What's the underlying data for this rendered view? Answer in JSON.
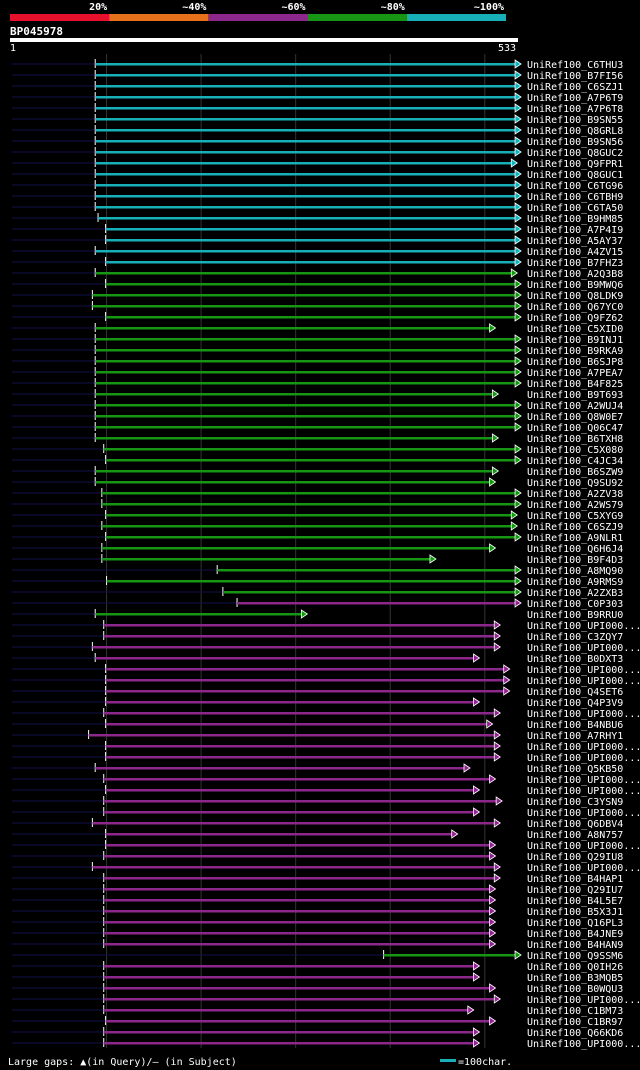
{
  "chart_data": {
    "type": "alignment-overview",
    "title": "BP045978",
    "query_start_label": "1",
    "query_end_label": "533",
    "query_length": 533,
    "legend_identity": [
      {
        "label": "20%",
        "color": "#e8112d"
      },
      {
        "label": "~40%",
        "color": "#e8721c"
      },
      {
        "label": "~60%",
        "color": "#8c278c"
      },
      {
        "label": "~80%",
        "color": "#169614"
      },
      {
        "label": "~100%",
        "color": "#17b0b8"
      }
    ],
    "footer_gap_legend": "Large gaps: ▲(in Query)/– (in Subject)",
    "footer_scale_legend": "=100char.",
    "scale_bar_chars": 100,
    "grid_at_query_positions": [
      100,
      200,
      300,
      400,
      500
    ],
    "rows": [
      {
        "name": "UniRef100_C6THU3",
        "id": "100",
        "start": 88,
        "end": 532
      },
      {
        "name": "UniRef100_B7FI56",
        "id": "100",
        "start": 88,
        "end": 532
      },
      {
        "name": "UniRef100_C6SZJ1",
        "id": "100",
        "start": 88,
        "end": 532
      },
      {
        "name": "UniRef100_A7P6T9",
        "id": "100",
        "start": 88,
        "end": 532
      },
      {
        "name": "UniRef100_A7P6T8",
        "id": "100",
        "start": 88,
        "end": 532
      },
      {
        "name": "UniRef100_B9SN55",
        "id": "100",
        "start": 88,
        "end": 532
      },
      {
        "name": "UniRef100_Q8GRL8",
        "id": "100",
        "start": 88,
        "end": 532
      },
      {
        "name": "UniRef100_B9SN56",
        "id": "100",
        "start": 88,
        "end": 532
      },
      {
        "name": "UniRef100_Q8GUC2",
        "id": "100",
        "start": 88,
        "end": 532
      },
      {
        "name": "UniRef100_Q9FPR1",
        "id": "100",
        "start": 88,
        "end": 528
      },
      {
        "name": "UniRef100_Q8GUC1",
        "id": "100",
        "start": 88,
        "end": 532
      },
      {
        "name": "UniRef100_C6TG96",
        "id": "100",
        "start": 88,
        "end": 532
      },
      {
        "name": "UniRef100_C6TBH9",
        "id": "100",
        "start": 88,
        "end": 532
      },
      {
        "name": "UniRef100_C6TA50",
        "id": "100",
        "start": 88,
        "end": 532
      },
      {
        "name": "UniRef100_B9HM85",
        "id": "100",
        "start": 91,
        "end": 532
      },
      {
        "name": "UniRef100_A7P4I9",
        "id": "100",
        "start": 99,
        "end": 532
      },
      {
        "name": "UniRef100_A5AY37",
        "id": "100",
        "start": 99,
        "end": 532
      },
      {
        "name": "UniRef100_A4ZV15",
        "id": "100",
        "start": 88,
        "end": 532
      },
      {
        "name": "UniRef100_B7FHZ3",
        "id": "100",
        "start": 99,
        "end": 532
      },
      {
        "name": "UniRef100_A2Q3B8",
        "id": "80",
        "start": 88,
        "end": 528
      },
      {
        "name": "UniRef100_B9MWQ6",
        "id": "80",
        "start": 99,
        "end": 532
      },
      {
        "name": "UniRef100_Q8LDK9",
        "id": "80",
        "start": 85,
        "end": 532
      },
      {
        "name": "UniRef100_Q67YC0",
        "id": "80",
        "start": 85,
        "end": 532
      },
      {
        "name": "UniRef100_Q9FZ62",
        "id": "80",
        "start": 99,
        "end": 532
      },
      {
        "name": "UniRef100_C5XID0",
        "id": "80",
        "start": 88,
        "end": 505
      },
      {
        "name": "UniRef100_B9INJ1",
        "id": "80",
        "start": 88,
        "end": 532
      },
      {
        "name": "UniRef100_B9RKA9",
        "id": "80",
        "start": 88,
        "end": 532
      },
      {
        "name": "UniRef100_B6SJP8",
        "id": "80",
        "start": 88,
        "end": 532
      },
      {
        "name": "UniRef100_A7PEA7",
        "id": "80",
        "start": 88,
        "end": 532
      },
      {
        "name": "UniRef100_B4F825",
        "id": "80",
        "start": 88,
        "end": 532
      },
      {
        "name": "UniRef100_B9T693",
        "id": "80",
        "start": 88,
        "end": 508
      },
      {
        "name": "UniRef100_A2WUJ4",
        "id": "80",
        "start": 88,
        "end": 532
      },
      {
        "name": "UniRef100_Q8W0E7",
        "id": "80",
        "start": 88,
        "end": 532
      },
      {
        "name": "UniRef100_Q06C47",
        "id": "80",
        "start": 88,
        "end": 532
      },
      {
        "name": "UniRef100_B6TXH8",
        "id": "80",
        "start": 88,
        "end": 508
      },
      {
        "name": "UniRef100_C5X080",
        "id": "80",
        "start": 97,
        "end": 532
      },
      {
        "name": "UniRef100_C4JC34",
        "id": "80",
        "start": 99,
        "end": 532
      },
      {
        "name": "UniRef100_B6SZW9",
        "id": "80",
        "start": 88,
        "end": 508
      },
      {
        "name": "UniRef100_Q9SU92",
        "id": "80",
        "start": 88,
        "end": 505
      },
      {
        "name": "UniRef100_A2ZV38",
        "id": "80",
        "start": 95,
        "end": 532
      },
      {
        "name": "UniRef100_A2WS79",
        "id": "80",
        "start": 95,
        "end": 532
      },
      {
        "name": "UniRef100_C5XYG9",
        "id": "80",
        "start": 99,
        "end": 528
      },
      {
        "name": "UniRef100_C6SZJ9",
        "id": "80",
        "start": 95,
        "end": 528
      },
      {
        "name": "UniRef100_A9NLR1",
        "id": "80",
        "start": 99,
        "end": 532
      },
      {
        "name": "UniRef100_Q6H6J4",
        "id": "80",
        "start": 95,
        "end": 505
      },
      {
        "name": "UniRef100_B9F4D3",
        "id": "80",
        "start": 95,
        "end": 442
      },
      {
        "name": "UniRef100_A8MQ90",
        "id": "80",
        "start": 217,
        "end": 532
      },
      {
        "name": "UniRef100_A9RMS9",
        "id": "80",
        "start": 100,
        "end": 532
      },
      {
        "name": "UniRef100_A2ZXB3",
        "id": "80",
        "start": 223,
        "end": 532
      },
      {
        "name": "UniRef100_C0P303",
        "id": "60",
        "start": 238,
        "end": 532
      },
      {
        "name": "UniRef100_B9RRU0",
        "id": "80",
        "start": 88,
        "end": 306
      },
      {
        "name": "UniRef100_UPI000...",
        "id": "60",
        "start": 97,
        "end": 510
      },
      {
        "name": "UniRef100_C3ZQY7",
        "id": "60",
        "start": 97,
        "end": 510
      },
      {
        "name": "UniRef100_UPI000...",
        "id": "60",
        "start": 85,
        "end": 510
      },
      {
        "name": "UniRef100_B0DXT3",
        "id": "60",
        "start": 88,
        "end": 488
      },
      {
        "name": "UniRef100_UPI000...",
        "id": "60",
        "start": 99,
        "end": 520
      },
      {
        "name": "UniRef100_UPI000...",
        "id": "60",
        "start": 99,
        "end": 520
      },
      {
        "name": "UniRef100_Q4SET6",
        "id": "60",
        "start": 99,
        "end": 520
      },
      {
        "name": "UniRef100_Q4P3V9",
        "id": "60",
        "start": 99,
        "end": 488
      },
      {
        "name": "UniRef100_UPI000...",
        "id": "60",
        "start": 97,
        "end": 510
      },
      {
        "name": "UniRef100_B4NBU6",
        "id": "60",
        "start": 99,
        "end": 502
      },
      {
        "name": "UniRef100_A7RHY1",
        "id": "60",
        "start": 81,
        "end": 510
      },
      {
        "name": "UniRef100_UPI000...",
        "id": "60",
        "start": 99,
        "end": 510
      },
      {
        "name": "UniRef100_UPI000...",
        "id": "60",
        "start": 99,
        "end": 510
      },
      {
        "name": "UniRef100_Q5KB50",
        "id": "60",
        "start": 88,
        "end": 478
      },
      {
        "name": "UniRef100_UPI000...",
        "id": "60",
        "start": 97,
        "end": 505
      },
      {
        "name": "UniRef100_UPI000...",
        "id": "60",
        "start": 99,
        "end": 488
      },
      {
        "name": "UniRef100_C3YSN9",
        "id": "60",
        "start": 97,
        "end": 512
      },
      {
        "name": "UniRef100_UPI000...",
        "id": "60",
        "start": 97,
        "end": 488
      },
      {
        "name": "UniRef100_Q6DBV4",
        "id": "60",
        "start": 85,
        "end": 510
      },
      {
        "name": "UniRef100_A8N757",
        "id": "60",
        "start": 99,
        "end": 465
      },
      {
        "name": "UniRef100_UPI000...",
        "id": "60",
        "start": 99,
        "end": 505
      },
      {
        "name": "UniRef100_Q29IU8",
        "id": "60",
        "start": 97,
        "end": 505
      },
      {
        "name": "UniRef100_UPI000...",
        "id": "60",
        "start": 85,
        "end": 510
      },
      {
        "name": "UniRef100_B4HAP1",
        "id": "60",
        "start": 97,
        "end": 510
      },
      {
        "name": "UniRef100_Q29IU7",
        "id": "60",
        "start": 97,
        "end": 505
      },
      {
        "name": "UniRef100_B4L5E7",
        "id": "60",
        "start": 97,
        "end": 505
      },
      {
        "name": "UniRef100_B5X3J1",
        "id": "60",
        "start": 97,
        "end": 505
      },
      {
        "name": "UniRef100_Q16PL3",
        "id": "60",
        "start": 97,
        "end": 505
      },
      {
        "name": "UniRef100_B4JNE9",
        "id": "60",
        "start": 97,
        "end": 505
      },
      {
        "name": "UniRef100_B4HAN9",
        "id": "60",
        "start": 97,
        "end": 505
      },
      {
        "name": "UniRef100_Q9SSM6",
        "id": "80",
        "start": 393,
        "end": 532
      },
      {
        "name": "UniRef100_Q0IH26",
        "id": "60",
        "start": 97,
        "end": 488
      },
      {
        "name": "UniRef100_B3MQB5",
        "id": "60",
        "start": 97,
        "end": 488
      },
      {
        "name": "UniRef100_B0WQU3",
        "id": "60",
        "start": 97,
        "end": 505
      },
      {
        "name": "UniRef100_UPI000...",
        "id": "60",
        "start": 97,
        "end": 510
      },
      {
        "name": "UniRef100_C1BM73",
        "id": "60",
        "start": 97,
        "end": 482
      },
      {
        "name": "UniRef100_C1BR97",
        "id": "60",
        "start": 99,
        "end": 505
      },
      {
        "name": "UniRef100_Q66KD6",
        "id": "60",
        "start": 97,
        "end": 488
      },
      {
        "name": "UniRef100_UPI000...",
        "id": "60",
        "start": 97,
        "end": 488
      }
    ]
  }
}
